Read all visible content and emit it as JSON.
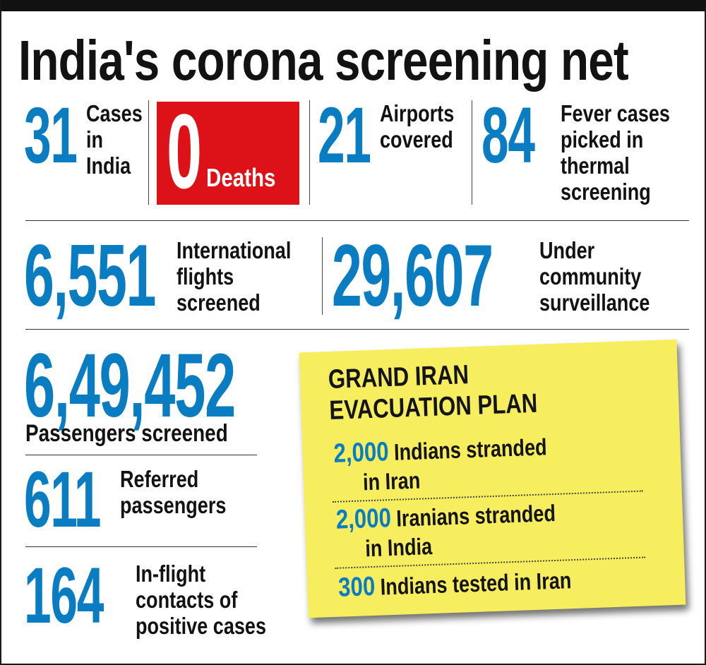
{
  "headline": "India's corona screening net",
  "stats": {
    "cases": {
      "number": "31",
      "label_lines": [
        "Cases",
        "in",
        "India"
      ]
    },
    "deaths": {
      "number": "0",
      "label": "Deaths"
    },
    "airports": {
      "number": "21",
      "label_lines": [
        "Airports",
        "covered"
      ]
    },
    "fever": {
      "number": "84",
      "label_lines": [
        "Fever cases",
        "picked in",
        "thermal",
        "screening"
      ]
    },
    "intl_flights": {
      "number": "6,551",
      "label_lines": [
        "International",
        "flights",
        "screened"
      ]
    },
    "surveillance": {
      "number": "29,607",
      "label_lines": [
        "Under",
        "community",
        "surveillance"
      ]
    },
    "passengers": {
      "number": "6,49,452",
      "label": "Passengers screened"
    },
    "referred": {
      "number": "611",
      "label_lines": [
        "Referred",
        "passengers"
      ]
    },
    "inflight": {
      "number": "164",
      "label_lines": [
        "In-flight",
        "contacts of",
        "positive cases"
      ]
    }
  },
  "iran_plan": {
    "title_lines": [
      "GRAND IRAN",
      "EVACUATION PLAN"
    ],
    "items": [
      {
        "number": "2,000",
        "text": "Indians stranded",
        "text2": "in Iran"
      },
      {
        "number": "2,000",
        "text": "Iranians stranded",
        "text2": "in India"
      },
      {
        "number": "300",
        "text": "Indians tested in Iran"
      }
    ]
  },
  "colors": {
    "accent_blue": "#0a7dc2",
    "death_red": "#dd1118",
    "note_yellow": "#f7ee5f"
  }
}
